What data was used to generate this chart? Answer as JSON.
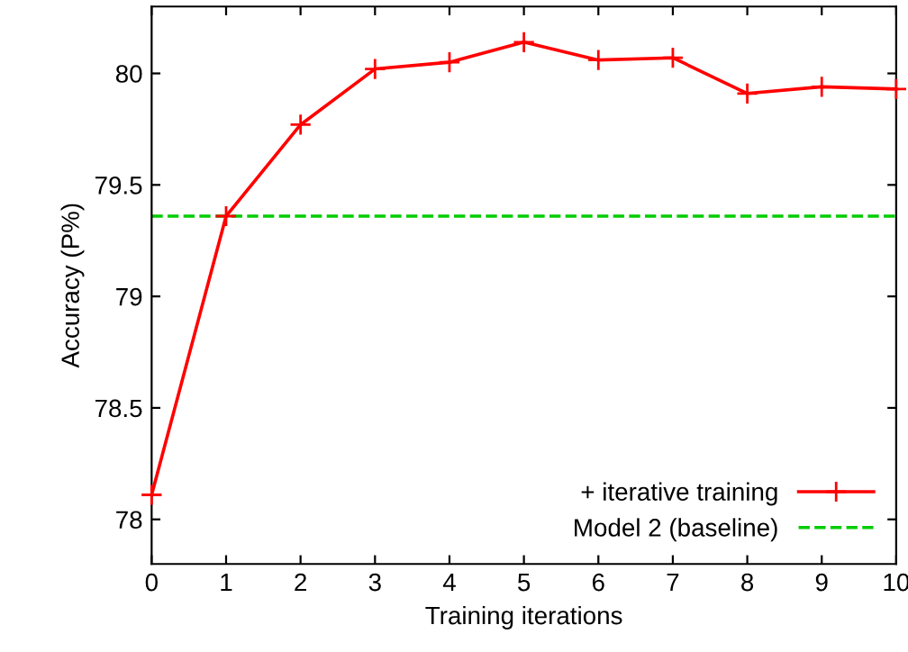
{
  "chart_data": {
    "type": "line",
    "xlabel": "Training iterations",
    "ylabel": "Accuracy (P%)",
    "x": [
      0,
      1,
      2,
      3,
      4,
      5,
      6,
      7,
      8,
      9,
      10
    ],
    "series": [
      {
        "name": "+ iterative training",
        "color": "#ff0000",
        "values": [
          78.11,
          79.36,
          79.77,
          80.02,
          80.05,
          80.14,
          80.06,
          80.07,
          79.91,
          79.94,
          79.93
        ]
      }
    ],
    "ref_lines": [
      {
        "axis": "y",
        "value": 79.36,
        "label": "Model 2 (baseline)",
        "color": "#00cc00",
        "line_style": "dashed"
      }
    ],
    "xlim": [
      0,
      10
    ],
    "xticks": [
      0,
      1,
      2,
      3,
      4,
      5,
      6,
      7,
      8,
      9,
      10
    ],
    "ylim": [
      77.8,
      80.3
    ],
    "yticks": [
      78,
      78.5,
      79,
      79.5,
      80
    ],
    "marker": "cross",
    "line_style": "solid",
    "grid": false,
    "legend": "bottom right"
  }
}
